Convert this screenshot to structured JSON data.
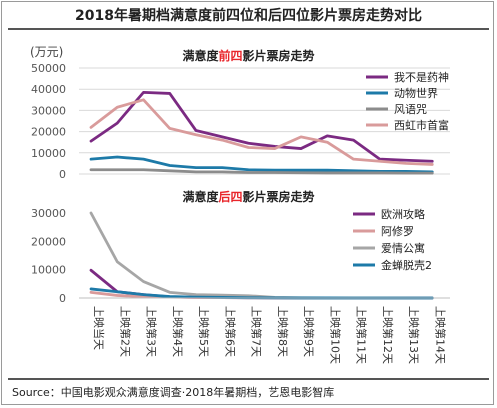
{
  "title": "2018年暑期档满意度前四位和后四位影片票房走势对比",
  "source": "Source：中国电影观众满意度调查·2018年暑期档，艺恩电影智库",
  "colors": {
    "gridline": "#d9d9d9",
    "axis_text": "#555555",
    "highlight": "#e8262b"
  },
  "chart_data": [
    {
      "type": "line",
      "title_parts": {
        "before": "满意度",
        "highlight": "前四",
        "after": "影片票房走势"
      },
      "unit": "(万元)",
      "categories": [
        "上映当天",
        "上映第2天",
        "上映第3天",
        "上映第4天",
        "上映第5天",
        "上映第6天",
        "上映第7天",
        "上映第8天",
        "上映第9天",
        "上映第10天",
        "上映第11天",
        "上映第12天",
        "上映第13天",
        "上映第14天"
      ],
      "ylim": [
        0,
        50000
      ],
      "yticks": [
        0,
        10000,
        20000,
        30000,
        40000,
        50000
      ],
      "grid": true,
      "legend_position": "top-right",
      "series": [
        {
          "name": "我不是药神",
          "color": "#7b2a82",
          "values": [
            15500,
            24000,
            38500,
            38000,
            20500,
            17500,
            14500,
            13000,
            12000,
            18000,
            16000,
            7000,
            6500,
            6000
          ]
        },
        {
          "name": "动物世界",
          "color": "#1d7aa8",
          "values": [
            7000,
            8000,
            7000,
            4000,
            3000,
            3000,
            2000,
            1800,
            1800,
            1800,
            1500,
            1200,
            1200,
            1000
          ]
        },
        {
          "name": "风语咒",
          "color": "#8c8c8c",
          "values": [
            2000,
            2000,
            2000,
            1500,
            1000,
            1000,
            700,
            700,
            600,
            500,
            500,
            500,
            400,
            400
          ]
        },
        {
          "name": "西虹市首富",
          "color": "#d99b9b",
          "values": [
            22000,
            31500,
            35000,
            21500,
            18500,
            16000,
            12500,
            12000,
            17500,
            15000,
            7000,
            6000,
            5000,
            4500
          ]
        }
      ]
    },
    {
      "type": "line",
      "title_parts": {
        "before": "满意度",
        "highlight": "后四",
        "after": "影片票房走势"
      },
      "categories": [
        "上映当天",
        "上映第2天",
        "上映第3天",
        "上映第4天",
        "上映第5天",
        "上映第6天",
        "上映第7天",
        "上映第8天",
        "上映第9天",
        "上映第10天",
        "上映第11天",
        "上映第12天",
        "上映第13天",
        "上映第14天"
      ],
      "ylim": [
        0,
        30000
      ],
      "yticks": [
        0,
        10000,
        20000,
        30000
      ],
      "grid": false,
      "legend_position": "top-right",
      "series": [
        {
          "name": "欧洲攻略",
          "color": "#7b2a82",
          "values": [
            9800,
            2200,
            1200,
            400,
            200,
            150,
            100,
            50,
            30,
            20,
            10,
            10,
            10,
            0
          ]
        },
        {
          "name": "阿修罗",
          "color": "#d99b9b",
          "values": [
            2000,
            900,
            500,
            300,
            200,
            150,
            100,
            50,
            30,
            20,
            10,
            10,
            10,
            0
          ]
        },
        {
          "name": "爱情公寓",
          "color": "#a6a6a6",
          "values": [
            30000,
            12800,
            5800,
            2000,
            1200,
            1000,
            800,
            200,
            100,
            50,
            30,
            20,
            10,
            0
          ]
        },
        {
          "name": "金蝉脱壳2",
          "color": "#1d7aa8",
          "values": [
            3200,
            2200,
            1200,
            500,
            300,
            200,
            100,
            50,
            30,
            20,
            10,
            10,
            10,
            0
          ]
        }
      ]
    }
  ]
}
